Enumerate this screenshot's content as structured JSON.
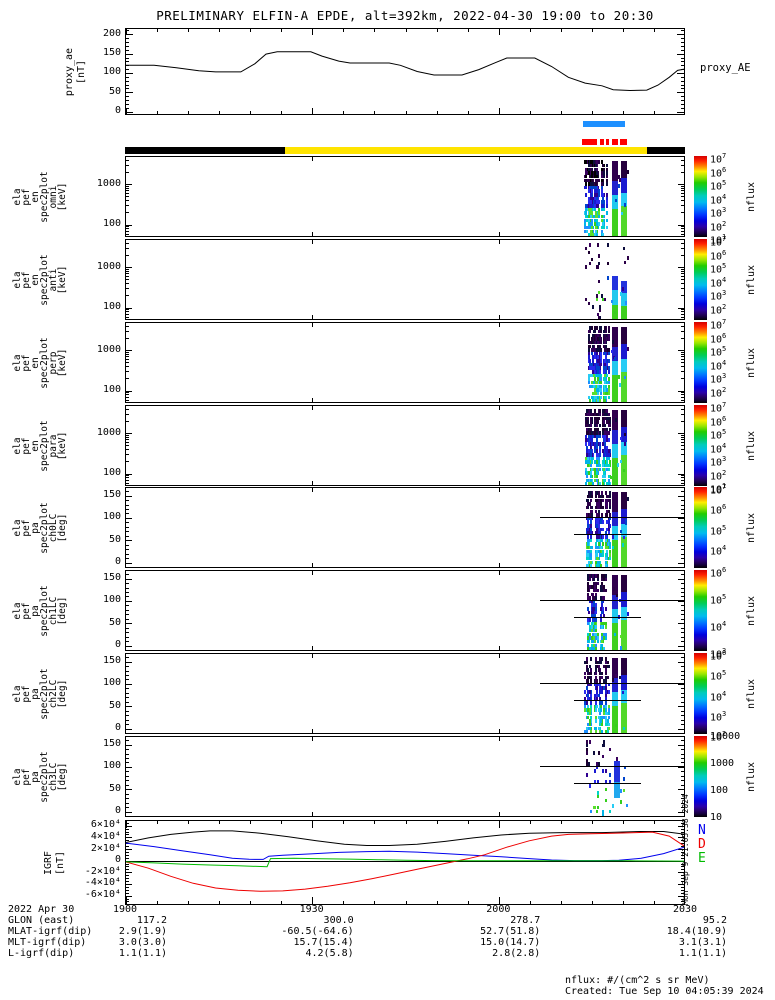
{
  "title": "PRELIMINARY ELFIN-A EPDE, alt=392km, 2022-04-30 19:00 to 20:30",
  "proxy_panel": {
    "right_label": "proxy_AE",
    "ylabel_lines": [
      "proxy_ae",
      "[nT]"
    ],
    "yticks": [
      {
        "label": "200",
        "value": 200
      },
      {
        "label": "150",
        "value": 150
      },
      {
        "label": "100",
        "value": 100
      },
      {
        "label": "50",
        "value": 50
      },
      {
        "label": "0",
        "value": 0
      }
    ]
  },
  "spectro_panels": [
    {
      "name": "en-omni",
      "type": "energy",
      "ylabel_lines": [
        "ela",
        "pef",
        "en",
        "spec2plot",
        "omni",
        "[keV]"
      ],
      "yticks": [
        {
          "label": "1000",
          "value": 3
        },
        {
          "label": "100",
          "value": 2
        }
      ],
      "colorbar": {
        "style": "exp",
        "emax": 7,
        "emin": 1,
        "ticks": [
          7,
          6,
          5,
          4,
          3,
          2,
          1
        ],
        "label": "nflux"
      }
    },
    {
      "name": "en-anti",
      "type": "energy",
      "ylabel_lines": [
        "ela",
        "pef",
        "en",
        "spec2plot",
        "anti",
        "[keV]"
      ],
      "yticks": [
        {
          "label": "1000",
          "value": 3
        },
        {
          "label": "100",
          "value": 2
        }
      ],
      "colorbar": {
        "style": "exp",
        "emax": 7,
        "emin": 1,
        "ticks": [
          7,
          6,
          5,
          4,
          3,
          2
        ],
        "label": "nflux"
      }
    },
    {
      "name": "en-perp",
      "type": "energy",
      "ylabel_lines": [
        "ela",
        "pef",
        "en",
        "spec2plot",
        "perp",
        "[keV]"
      ],
      "yticks": [
        {
          "label": "1000",
          "value": 3
        },
        {
          "label": "100",
          "value": 2
        }
      ],
      "colorbar": {
        "style": "exp",
        "emax": 7,
        "emin": 1,
        "ticks": [
          7,
          6,
          5,
          4,
          3,
          2
        ],
        "label": "nflux"
      }
    },
    {
      "name": "en-para",
      "type": "energy",
      "ylabel_lines": [
        "ela",
        "pef",
        "en",
        "spec2plot",
        "para",
        "[keV]"
      ],
      "yticks": [
        {
          "label": "1000",
          "value": 3
        },
        {
          "label": "100",
          "value": 2
        }
      ],
      "colorbar": {
        "style": "exp",
        "emax": 7,
        "emin": 1,
        "ticks": [
          7,
          6,
          5,
          4,
          3,
          2,
          1
        ],
        "label": "nflux"
      }
    },
    {
      "name": "pa-ch0LC",
      "type": "pitch",
      "ylabel_lines": [
        "ela",
        "pef",
        "pa",
        "spec2plot",
        "ch0LC",
        "[deg]"
      ],
      "yticks": [
        {
          "label": "150",
          "value": 150
        },
        {
          "label": "100",
          "value": 100
        },
        {
          "label": "50",
          "value": 50
        },
        {
          "label": "0",
          "value": 0
        }
      ],
      "colorbar": {
        "style": "exp",
        "emax": 7,
        "emin": 3,
        "ticks": [
          7,
          6,
          5,
          4
        ],
        "label": "nflux"
      }
    },
    {
      "name": "pa-ch1LC",
      "type": "pitch",
      "ylabel_lines": [
        "ela",
        "pef",
        "pa",
        "spec2plot",
        "ch1LC",
        "[deg]"
      ],
      "yticks": [
        {
          "label": "150",
          "value": 150
        },
        {
          "label": "100",
          "value": 100
        },
        {
          "label": "50",
          "value": 50
        },
        {
          "label": "0",
          "value": 0
        }
      ],
      "colorbar": {
        "style": "exp",
        "emax": 6,
        "emin": 3,
        "ticks": [
          6,
          5,
          4,
          3
        ],
        "label": "nflux"
      }
    },
    {
      "name": "pa-ch2LC",
      "type": "pitch",
      "ylabel_lines": [
        "ela",
        "pef",
        "pa",
        "spec2plot",
        "ch2LC",
        "[deg]"
      ],
      "yticks": [
        {
          "label": "150",
          "value": 150
        },
        {
          "label": "100",
          "value": 100
        },
        {
          "label": "50",
          "value": 50
        },
        {
          "label": "0",
          "value": 0
        }
      ],
      "colorbar": {
        "style": "exp",
        "emax": 6,
        "emin": 2,
        "ticks": [
          6,
          5,
          4,
          3,
          2
        ],
        "label": "nflux"
      }
    },
    {
      "name": "pa-ch3LC",
      "type": "pitch",
      "ylabel_lines": [
        "ela",
        "pef",
        "pa",
        "spec2plot",
        "ch3LC",
        "[deg]"
      ],
      "yticks": [
        {
          "label": "150",
          "value": 150
        },
        {
          "label": "100",
          "value": 100
        },
        {
          "label": "50",
          "value": 50
        },
        {
          "label": "0",
          "value": 0
        }
      ],
      "colorbar": {
        "style": "dec",
        "emax": 4,
        "emin": 1,
        "ticks": [
          {
            "e": 4,
            "label": "10000"
          },
          {
            "e": 3,
            "label": "1000"
          },
          {
            "e": 2,
            "label": "100"
          },
          {
            "e": 1,
            "label": "10"
          }
        ],
        "label": "nflux"
      }
    }
  ],
  "igrf_panel": {
    "ylabel_lines": [
      "IGRF",
      "[nT]"
    ],
    "yticks": [
      {
        "label": "6×10⁴",
        "value": 60000
      },
      {
        "label": "4×10⁴",
        "value": 40000
      },
      {
        "label": "2×10⁴",
        "value": 20000
      },
      {
        "label": "0",
        "value": 0
      },
      {
        "label": "-2×10⁴",
        "value": -20000
      },
      {
        "label": "-4×10⁴",
        "value": -40000
      },
      {
        "label": "-6×10⁴",
        "value": -60000
      }
    ],
    "legend": [
      {
        "label": "N",
        "color": "#0000ee"
      },
      {
        "label": "D",
        "color": "#ee0000"
      },
      {
        "label": "E",
        "color": "#00bb00"
      }
    ]
  },
  "annotations": {
    "row_labels": [
      "2022 Apr 30",
      "GLON (east)",
      "MLAT-igrf(dip)",
      "MLT-igrf(dip)",
      "L-igrf(dip)"
    ],
    "columns": [
      {
        "time": "1900",
        "values": [
          "117.2",
          "2.9(1.9)",
          "3.0(3.0)",
          "1.1(1.1)"
        ]
      },
      {
        "time": "1930",
        "values": [
          "300.0",
          "-60.5(-64.6)",
          "15.7(15.4)",
          "4.2(5.8)"
        ]
      },
      {
        "time": "2000",
        "values": [
          "278.7",
          "52.7(51.8)",
          "15.0(14.7)",
          "2.8(2.8)"
        ]
      },
      {
        "time": "2030",
        "values": [
          "95.2",
          "18.4(10.9)",
          "3.1(3.1)",
          "1.1(1.1)"
        ]
      }
    ]
  },
  "footer": {
    "units": "nflux: #/(cm^2 s sr MeV)",
    "created": "Created: Tue Sep 10 04:05:39 2024",
    "side_timestamp": "Mon Sep  9 21:05:38 2024"
  },
  "bars": {
    "blue_bar": {
      "x0_frac": 0.818,
      "x1_frac": 0.893,
      "color": "#1e90ff"
    },
    "red_dashes": {
      "color": "#ff0000",
      "segments": [
        [
          0.816,
          0.842
        ],
        [
          0.848,
          0.855
        ],
        [
          0.859,
          0.864
        ],
        [
          0.869,
          0.88
        ],
        [
          0.884,
          0.897
        ]
      ]
    },
    "mode_segments": [
      {
        "color": "#000000",
        "x0_frac": 0,
        "x1_frac": 0.285
      },
      {
        "color": "#ffe400",
        "x0_frac": 0.285,
        "x1_frac": 0.933
      },
      {
        "color": "#000000",
        "x0_frac": 0.933,
        "x1_frac": 1
      }
    ]
  },
  "chart_data": {
    "type": "multi-panel-time-series",
    "date": "2022-04-30",
    "x_range": [
      "19:00",
      "20:30"
    ],
    "x_major_ticks": [
      "1900",
      "1930",
      "2000",
      "2030"
    ],
    "proxy_ae": {
      "type": "line",
      "ylabel": "proxy_ae [nT]",
      "ylim": [
        -10,
        215
      ],
      "points_frac_value": [
        [
          0,
          121
        ],
        [
          0.05,
          121
        ],
        [
          0.09,
          115
        ],
        [
          0.13,
          107
        ],
        [
          0.16,
          104
        ],
        [
          0.205,
          104
        ],
        [
          0.23,
          125
        ],
        [
          0.25,
          150
        ],
        [
          0.27,
          156
        ],
        [
          0.33,
          156
        ],
        [
          0.35,
          145
        ],
        [
          0.38,
          132
        ],
        [
          0.4,
          127
        ],
        [
          0.47,
          127
        ],
        [
          0.49,
          121
        ],
        [
          0.52,
          105
        ],
        [
          0.55,
          96
        ],
        [
          0.6,
          96
        ],
        [
          0.63,
          110
        ],
        [
          0.66,
          128
        ],
        [
          0.68,
          140
        ],
        [
          0.73,
          140
        ],
        [
          0.76,
          118
        ],
        [
          0.79,
          90
        ],
        [
          0.82,
          75
        ],
        [
          0.85,
          68
        ],
        [
          0.87,
          58
        ],
        [
          0.9,
          56
        ],
        [
          0.93,
          57
        ],
        [
          0.95,
          70
        ],
        [
          0.97,
          90
        ],
        [
          0.985,
          108
        ],
        [
          1,
          112
        ]
      ]
    },
    "spectrograms": {
      "type": "heatmap",
      "burst_x0_frac": 0.818,
      "burst_x1_frac": 0.896,
      "note": "electron flux burst near 20:13-20:21 UT; rest of interval has no counts",
      "energy_ylim_log10_keV": [
        1.68,
        3.68
      ],
      "pitch_ylim_deg": [
        -13,
        168
      ],
      "panel_densities": [
        0.6,
        0.2,
        0.55,
        0.6,
        0.55,
        0.5,
        0.5,
        0.22
      ],
      "solid_styles": [
        "full",
        "bottom",
        "full",
        "full",
        "full",
        "full",
        "full",
        "sparse"
      ],
      "top_black": [
        true,
        false,
        false,
        false,
        false,
        false,
        false,
        false
      ],
      "loss_cone_lines": {
        "deg_upper": 101,
        "deg_lower": 63,
        "upper_span": [
          0.74,
          1.0
        ],
        "lower_span": [
          0.8,
          0.92
        ]
      }
    },
    "igrf": {
      "type": "line",
      "ylim": [
        -77000,
        69000
      ],
      "series": [
        {
          "name": "total",
          "color": "#000000",
          "points_frac_value": [
            [
              0,
              32000
            ],
            [
              0.04,
              40000
            ],
            [
              0.08,
              46000
            ],
            [
              0.12,
              50000
            ],
            [
              0.15,
              52000
            ],
            [
              0.19,
              52000
            ],
            [
              0.24,
              48000
            ],
            [
              0.29,
              42000
            ],
            [
              0.34,
              35000
            ],
            [
              0.39,
              29000
            ],
            [
              0.43,
              27000
            ],
            [
              0.47,
              27000
            ],
            [
              0.52,
              29000
            ],
            [
              0.57,
              34000
            ],
            [
              0.62,
              40000
            ],
            [
              0.67,
              45000
            ],
            [
              0.72,
              48000
            ],
            [
              0.78,
              49000
            ],
            [
              0.85,
              49000
            ],
            [
              0.92,
              51000
            ],
            [
              0.96,
              51000
            ],
            [
              1,
              46000
            ]
          ]
        },
        {
          "name": "N",
          "color": "#0000ee",
          "points_frac_value": [
            [
              0,
              31000
            ],
            [
              0.05,
              25000
            ],
            [
              0.1,
              18000
            ],
            [
              0.15,
              11000
            ],
            [
              0.19,
              5000
            ],
            [
              0.22,
              3200
            ],
            [
              0.245,
              3000
            ],
            [
              0.255,
              8500
            ],
            [
              0.28,
              10000
            ],
            [
              0.33,
              12500
            ],
            [
              0.38,
              15000
            ],
            [
              0.43,
              16500
            ],
            [
              0.47,
              17000
            ],
            [
              0.52,
              15500
            ],
            [
              0.57,
              13000
            ],
            [
              0.62,
              10000
            ],
            [
              0.67,
              7500
            ],
            [
              0.72,
              4500
            ],
            [
              0.76,
              2000
            ],
            [
              0.8,
              1000
            ],
            [
              0.85,
              1000
            ],
            [
              0.88,
              1500
            ],
            [
              0.92,
              5000
            ],
            [
              0.96,
              13000
            ],
            [
              1,
              25000
            ]
          ]
        },
        {
          "name": "D",
          "color": "#ee0000",
          "points_frac_value": [
            [
              0,
              -1500
            ],
            [
              0.04,
              -12000
            ],
            [
              0.08,
              -26000
            ],
            [
              0.12,
              -38000
            ],
            [
              0.16,
              -46000
            ],
            [
              0.2,
              -50000
            ],
            [
              0.24,
              -51500
            ],
            [
              0.28,
              -51000
            ],
            [
              0.32,
              -48000
            ],
            [
              0.36,
              -43000
            ],
            [
              0.4,
              -37000
            ],
            [
              0.44,
              -30000
            ],
            [
              0.48,
              -22000
            ],
            [
              0.52,
              -14000
            ],
            [
              0.55,
              -8000
            ],
            [
              0.58,
              -2000
            ],
            [
              0.61,
              4000
            ],
            [
              0.64,
              11000
            ],
            [
              0.68,
              24000
            ],
            [
              0.72,
              35000
            ],
            [
              0.76,
              43000
            ],
            [
              0.79,
              46000
            ],
            [
              0.83,
              47000
            ],
            [
              0.87,
              48000
            ],
            [
              0.91,
              49000
            ],
            [
              0.94,
              50000
            ],
            [
              0.97,
              43000
            ],
            [
              1,
              24000
            ]
          ]
        },
        {
          "name": "E",
          "color": "#00bb00",
          "points_frac_value": [
            [
              0,
              -1000
            ],
            [
              0.05,
              -3000
            ],
            [
              0.1,
              -5000
            ],
            [
              0.15,
              -6500
            ],
            [
              0.2,
              -8000
            ],
            [
              0.235,
              -9000
            ],
            [
              0.252,
              -9500
            ],
            [
              0.258,
              4500
            ],
            [
              0.3,
              5000
            ],
            [
              0.35,
              4200
            ],
            [
              0.4,
              3500
            ],
            [
              0.45,
              2500
            ],
            [
              0.5,
              1500
            ],
            [
              0.55,
              1000
            ],
            [
              0.6,
              800
            ],
            [
              0.7,
              600
            ],
            [
              0.8,
              600
            ],
            [
              0.9,
              600
            ],
            [
              1,
              200
            ]
          ]
        }
      ]
    }
  }
}
